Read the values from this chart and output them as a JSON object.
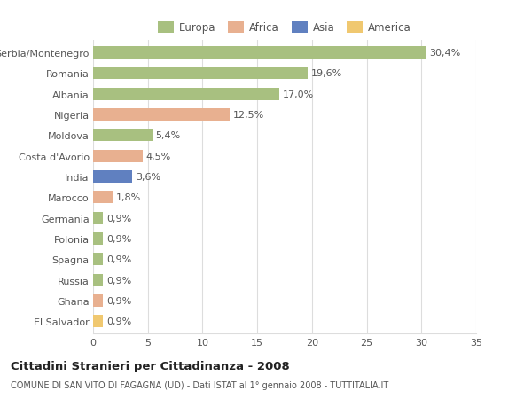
{
  "countries": [
    "Serbia/Montenegro",
    "Romania",
    "Albania",
    "Nigeria",
    "Moldova",
    "Costa d'Avorio",
    "India",
    "Marocco",
    "Germania",
    "Polonia",
    "Spagna",
    "Russia",
    "Ghana",
    "El Salvador"
  ],
  "values": [
    30.4,
    19.6,
    17.0,
    12.5,
    5.4,
    4.5,
    3.6,
    1.8,
    0.9,
    0.9,
    0.9,
    0.9,
    0.9,
    0.9
  ],
  "labels": [
    "30,4%",
    "19,6%",
    "17,0%",
    "12,5%",
    "5,4%",
    "4,5%",
    "3,6%",
    "1,8%",
    "0,9%",
    "0,9%",
    "0,9%",
    "0,9%",
    "0,9%",
    "0,9%"
  ],
  "continents": [
    "Europa",
    "Europa",
    "Europa",
    "Africa",
    "Europa",
    "Africa",
    "Asia",
    "Africa",
    "Europa",
    "Europa",
    "Europa",
    "Europa",
    "Africa",
    "America"
  ],
  "continent_colors": {
    "Europa": "#a8c080",
    "Africa": "#e8b090",
    "Asia": "#6080c0",
    "America": "#f0c870"
  },
  "legend_order": [
    "Europa",
    "Africa",
    "Asia",
    "America"
  ],
  "title": "Cittadini Stranieri per Cittadinanza - 2008",
  "subtitle": "COMUNE DI SAN VITO DI FAGAGNA (UD) - Dati ISTAT al 1° gennaio 2008 - TUTTITALIA.IT",
  "xlim": [
    0,
    35
  ],
  "xticks": [
    0,
    5,
    10,
    15,
    20,
    25,
    30,
    35
  ],
  "bg_color": "#ffffff",
  "grid_color": "#dddddd",
  "bar_height": 0.6,
  "label_fontsize": 8,
  "tick_fontsize": 8,
  "title_fontsize": 9.5,
  "subtitle_fontsize": 7
}
